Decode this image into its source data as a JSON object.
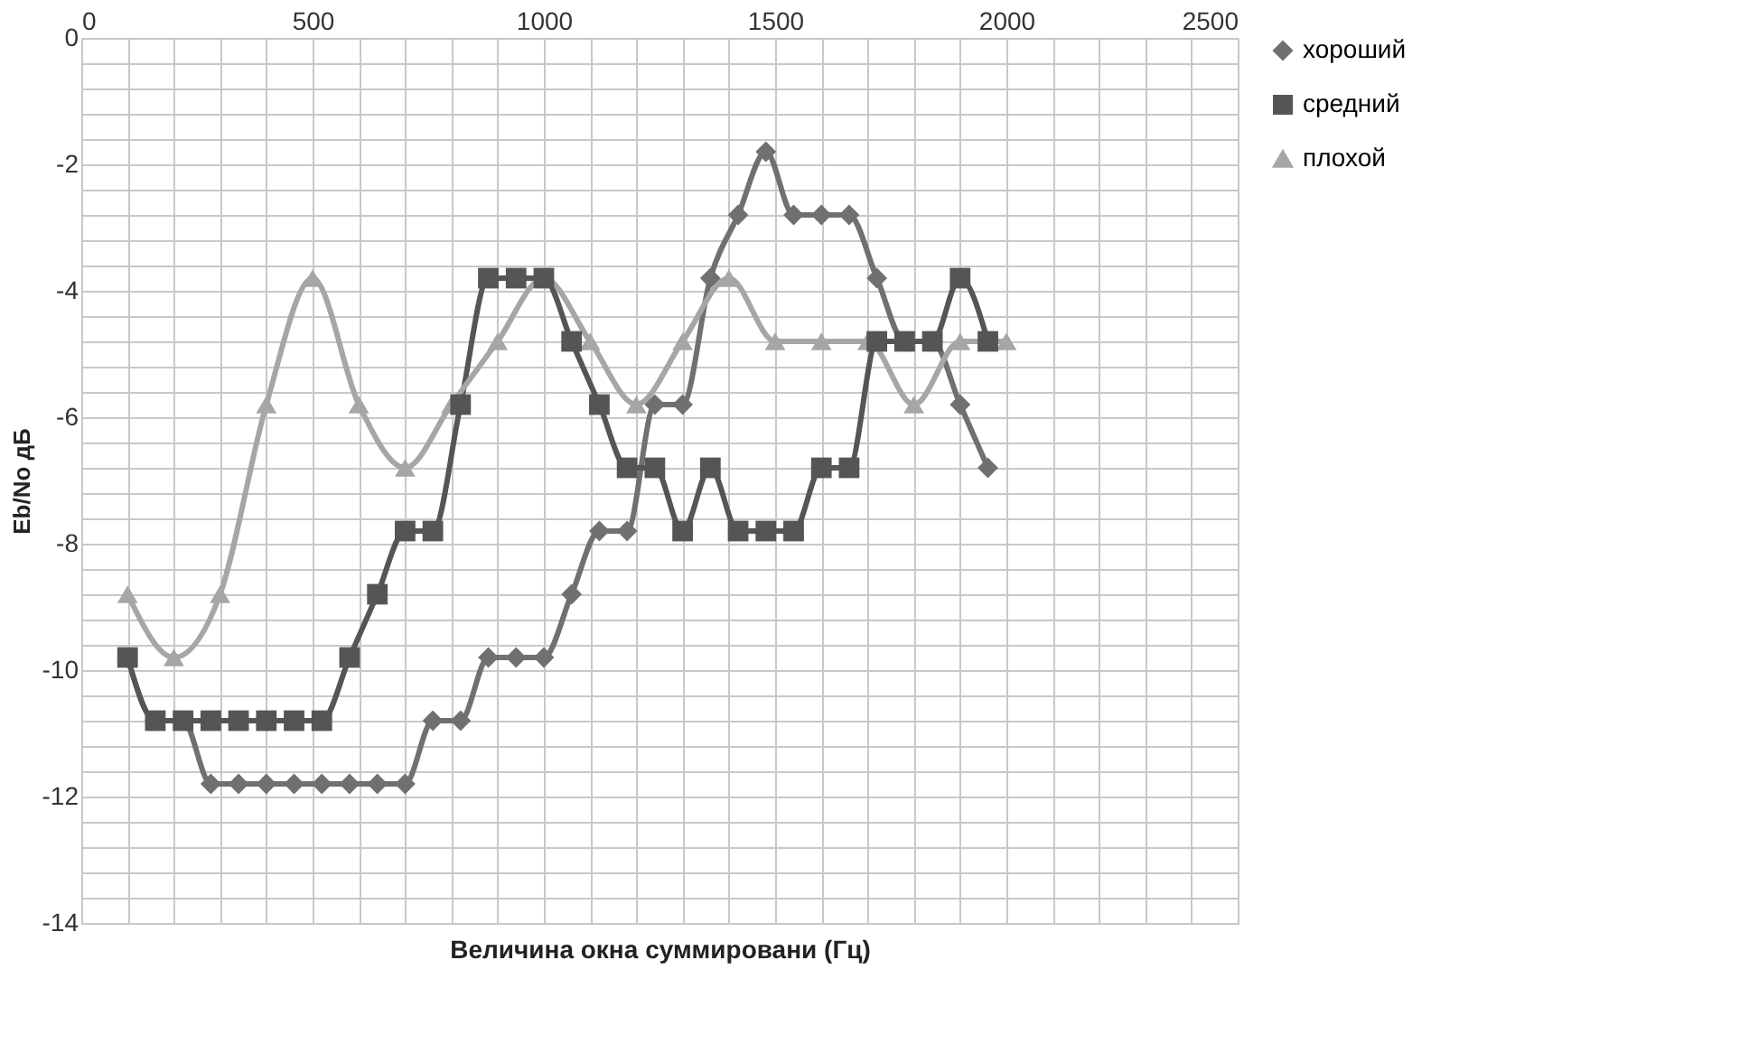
{
  "chart_data": {
    "type": "line",
    "xlabel": "Величина окна суммировани (Гц)",
    "ylabel": "Eb/No дБ",
    "xlim": [
      0,
      2500
    ],
    "ylim": [
      -14,
      0
    ],
    "xticks": [
      0,
      {
        "value": 100,
        "label": null
      },
      {
        "value": 200,
        "label": null
      },
      {
        "value": 300,
        "label": null
      },
      {
        "value": 400,
        "label": null
      },
      500,
      {
        "value": 600,
        "label": null
      },
      {
        "value": 700,
        "label": null
      },
      {
        "value": 800,
        "label": null
      },
      {
        "value": 900,
        "label": null
      },
      1000,
      {
        "value": 1100,
        "label": null
      },
      {
        "value": 1200,
        "label": null
      },
      {
        "value": 1300,
        "label": null
      },
      {
        "value": 1400,
        "label": null
      },
      1500,
      {
        "value": 1600,
        "label": null
      },
      {
        "value": 1700,
        "label": null
      },
      {
        "value": 1800,
        "label": null
      },
      {
        "value": 1900,
        "label": null
      },
      2000,
      {
        "value": 2100,
        "label": null
      },
      {
        "value": 2200,
        "label": null
      },
      {
        "value": 2300,
        "label": null
      },
      {
        "value": 2400,
        "label": null
      },
      2500
    ],
    "yticks": [
      -14,
      {
        "value": -13.6,
        "label": null
      },
      {
        "value": -13.2,
        "label": null
      },
      {
        "value": -12.8,
        "label": null
      },
      {
        "value": -12.4,
        "label": null
      },
      -12,
      {
        "value": -11.6,
        "label": null
      },
      {
        "value": -11.2,
        "label": null
      },
      {
        "value": -10.8,
        "label": null
      },
      {
        "value": -10.4,
        "label": null
      },
      -10,
      {
        "value": -9.6,
        "label": null
      },
      {
        "value": -9.2,
        "label": null
      },
      {
        "value": -8.8,
        "label": null
      },
      {
        "value": -8.4,
        "label": null
      },
      -8,
      {
        "value": -7.6,
        "label": null
      },
      {
        "value": -7.2,
        "label": null
      },
      {
        "value": -6.8,
        "label": null
      },
      {
        "value": -6.4,
        "label": null
      },
      -6,
      {
        "value": -5.6,
        "label": null
      },
      {
        "value": -5.2,
        "label": null
      },
      {
        "value": -4.8,
        "label": null
      },
      {
        "value": -4.4,
        "label": null
      },
      -4,
      {
        "value": -3.6,
        "label": null
      },
      {
        "value": -3.2,
        "label": null
      },
      {
        "value": -2.8,
        "label": null
      },
      {
        "value": -2.4,
        "label": null
      },
      -2,
      {
        "value": -1.6,
        "label": null
      },
      {
        "value": -1.2,
        "label": null
      },
      {
        "value": -0.8,
        "label": null
      },
      {
        "value": -0.4,
        "label": null
      },
      0
    ],
    "grid": true,
    "legend": "right",
    "line_style": "solid",
    "series": [
      {
        "name": "хороший",
        "color": "#707070",
        "marker": "diamond",
        "x": [
          100,
          160,
          220,
          280,
          340,
          400,
          460,
          520,
          580,
          640,
          700,
          760,
          820,
          880,
          940,
          1000,
          1060,
          1120,
          1180,
          1240,
          1300,
          1360,
          1420,
          1480,
          1540,
          1600,
          1660,
          1720,
          1780,
          1840,
          1900,
          1960
        ],
        "values": [
          -9.8,
          -10.8,
          -10.8,
          -11.8,
          -11.8,
          -11.8,
          -11.8,
          -11.8,
          -11.8,
          -11.8,
          -11.8,
          -10.8,
          -10.8,
          -9.8,
          -9.8,
          -9.8,
          -8.8,
          -7.8,
          -7.8,
          -5.8,
          -5.8,
          -3.8,
          -2.8,
          -1.8,
          -2.8,
          -2.8,
          -2.8,
          -3.8,
          -4.8,
          -4.8,
          -5.8,
          -6.8
        ]
      },
      {
        "name": "средний",
        "color": "#555555",
        "marker": "square",
        "x": [
          100,
          160,
          220,
          280,
          340,
          400,
          460,
          520,
          580,
          640,
          700,
          760,
          820,
          880,
          940,
          1000,
          1060,
          1120,
          1180,
          1240,
          1300,
          1360,
          1420,
          1480,
          1540,
          1600,
          1660,
          1720,
          1780,
          1840,
          1900,
          1960
        ],
        "values": [
          -9.8,
          -10.8,
          -10.8,
          -10.8,
          -10.8,
          -10.8,
          -10.8,
          -10.8,
          -9.8,
          -8.8,
          -7.8,
          -7.8,
          -5.8,
          -3.8,
          -3.8,
          -3.8,
          -4.8,
          -5.8,
          -6.8,
          -6.8,
          -7.8,
          -6.8,
          -7.8,
          -7.8,
          -7.8,
          -6.8,
          -6.8,
          -4.8,
          -4.8,
          -4.8,
          -3.8,
          -4.8
        ]
      },
      {
        "name": "плохой",
        "color": "#a6a6a6",
        "marker": "triangle",
        "x": [
          100,
          200,
          300,
          400,
          500,
          600,
          700,
          800,
          900,
          1000,
          1100,
          1200,
          1300,
          1400,
          1500,
          1600,
          1700,
          1800,
          1900,
          2000
        ],
        "values": [
          -8.8,
          -9.8,
          -8.8,
          -5.8,
          -3.8,
          -5.8,
          -6.8,
          -5.8,
          -4.8,
          -3.8,
          -4.8,
          -5.8,
          -4.8,
          -3.8,
          -4.8,
          -4.8,
          -4.8,
          -5.8,
          -4.8,
          -4.8
        ]
      }
    ]
  }
}
